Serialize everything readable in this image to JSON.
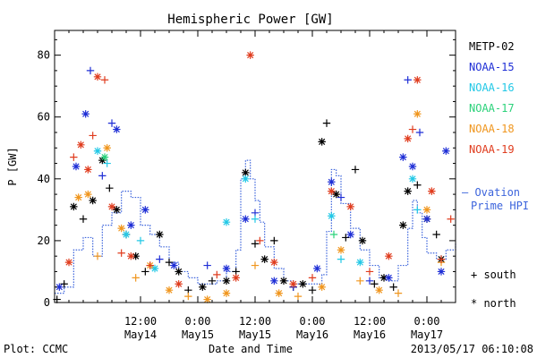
{
  "chart_data": {
    "type": "scatter",
    "title": "Hemispheric Power [GW]",
    "xlabel": "Date and Time",
    "ylabel": "P [GW]",
    "ylim": [
      0,
      88
    ],
    "xlim": [
      "2013-05-13 18:00",
      "2013-05-17 06:00"
    ],
    "y_ticks": [
      0,
      20,
      40,
      60,
      80
    ],
    "x_ticks": [
      {
        "at": "2013-05-14 12:00",
        "line1": "12:00",
        "line2": "May14"
      },
      {
        "at": "2013-05-15 00:00",
        "line1": "0:00",
        "line2": "May15"
      },
      {
        "at": "2013-05-15 12:00",
        "line1": "12:00",
        "line2": "May15"
      },
      {
        "at": "2013-05-16 00:00",
        "line1": "0:00",
        "line2": "May16"
      },
      {
        "at": "2013-05-16 12:00",
        "line1": "12:00",
        "line2": "May16"
      },
      {
        "at": "2013-05-17 00:00",
        "line1": "0:00",
        "line2": "May17"
      }
    ],
    "legend": [
      {
        "name": "METP-02",
        "color": "#000000"
      },
      {
        "name": "NOAA-15",
        "color": "#1f2fd6"
      },
      {
        "name": "NOAA-16",
        "color": "#22c8e6"
      },
      {
        "name": "NOAA-17",
        "color": "#2bd27a"
      },
      {
        "name": "NOAA-18",
        "color": "#f0961e"
      },
      {
        "name": "NOAA-19",
        "color": "#e03c1e"
      }
    ],
    "marker_legend": {
      "south": "+ south",
      "north": "* north"
    },
    "ovation_label": [
      "– Ovation",
      "Prime HPI"
    ],
    "ovation_color": "#3c64dc",
    "ovation": [
      [
        "2013-05-13 18:00",
        3
      ],
      [
        "2013-05-13 20:00",
        5
      ],
      [
        "2013-05-13 22:00",
        17
      ],
      [
        "2013-05-14 00:00",
        21
      ],
      [
        "2013-05-14 02:00",
        15
      ],
      [
        "2013-05-14 04:00",
        25
      ],
      [
        "2013-05-14 06:00",
        29
      ],
      [
        "2013-05-14 08:00",
        36
      ],
      [
        "2013-05-14 10:00",
        34
      ],
      [
        "2013-05-14 12:00",
        25
      ],
      [
        "2013-05-14 14:00",
        22
      ],
      [
        "2013-05-14 16:00",
        18
      ],
      [
        "2013-05-14 18:00",
        13
      ],
      [
        "2013-05-14 20:00",
        10
      ],
      [
        "2013-05-14 22:00",
        8
      ],
      [
        "2013-05-15 00:00",
        6
      ],
      [
        "2013-05-15 02:00",
        6
      ],
      [
        "2013-05-15 04:00",
        7
      ],
      [
        "2013-05-15 06:00",
        10
      ],
      [
        "2013-05-15 08:00",
        17
      ],
      [
        "2013-05-15 09:00",
        40
      ],
      [
        "2013-05-15 10:00",
        46
      ],
      [
        "2013-05-15 11:00",
        40
      ],
      [
        "2013-05-15 12:00",
        33
      ],
      [
        "2013-05-15 13:00",
        26
      ],
      [
        "2013-05-15 14:00",
        18
      ],
      [
        "2013-05-15 16:00",
        11
      ],
      [
        "2013-05-15 18:00",
        7
      ],
      [
        "2013-05-15 20:00",
        6
      ],
      [
        "2013-05-15 22:00",
        6
      ],
      [
        "2013-05-16 00:00",
        6
      ],
      [
        "2013-05-16 02:00",
        9
      ],
      [
        "2013-05-16 03:00",
        23
      ],
      [
        "2013-05-16 04:00",
        43
      ],
      [
        "2013-05-16 05:00",
        41
      ],
      [
        "2013-05-16 06:00",
        32
      ],
      [
        "2013-05-16 08:00",
        24
      ],
      [
        "2013-05-16 10:00",
        17
      ],
      [
        "2013-05-16 12:00",
        12
      ],
      [
        "2013-05-16 14:00",
        8
      ],
      [
        "2013-05-16 16:00",
        7
      ],
      [
        "2013-05-16 18:00",
        12
      ],
      [
        "2013-05-16 20:00",
        24
      ],
      [
        "2013-05-16 21:00",
        33
      ],
      [
        "2013-05-16 22:00",
        29
      ],
      [
        "2013-05-16 23:00",
        21
      ],
      [
        "2013-05-17 00:00",
        16
      ],
      [
        "2013-05-17 02:00",
        14
      ],
      [
        "2013-05-17 04:00",
        17
      ],
      [
        "2013-05-17 06:00",
        19
      ]
    ],
    "series": [
      {
        "name": "METP-02",
        "color": "#000000",
        "points": [
          [
            "2013-05-13 18:30",
            1,
            "+"
          ],
          [
            "2013-05-13 20:00",
            6,
            "+"
          ],
          [
            "2013-05-13 22:00",
            31,
            "*"
          ],
          [
            "2013-05-14 00:00",
            27,
            "+"
          ],
          [
            "2013-05-14 02:00",
            33,
            "*"
          ],
          [
            "2013-05-14 04:00",
            46,
            "*"
          ],
          [
            "2013-05-14 05:30",
            37,
            "+"
          ],
          [
            "2013-05-14 07:00",
            30,
            "*"
          ],
          [
            "2013-05-14 09:00",
            22,
            "+"
          ],
          [
            "2013-05-14 11:00",
            15,
            "*"
          ],
          [
            "2013-05-14 13:00",
            10,
            "+"
          ],
          [
            "2013-05-14 16:00",
            22,
            "*"
          ],
          [
            "2013-05-14 18:00",
            13,
            "+"
          ],
          [
            "2013-05-14 20:00",
            10,
            "*"
          ],
          [
            "2013-05-14 22:00",
            4,
            "+"
          ],
          [
            "2013-05-15 01:00",
            5,
            "*"
          ],
          [
            "2013-05-15 03:00",
            7,
            "+"
          ],
          [
            "2013-05-15 06:00",
            7,
            "*"
          ],
          [
            "2013-05-15 08:00",
            10,
            "+"
          ],
          [
            "2013-05-15 10:00",
            42,
            "*"
          ],
          [
            "2013-05-15 12:00",
            19,
            "+"
          ],
          [
            "2013-05-15 14:00",
            14,
            "*"
          ],
          [
            "2013-05-15 16:00",
            20,
            "+"
          ],
          [
            "2013-05-15 18:00",
            7,
            "*"
          ],
          [
            "2013-05-15 20:00",
            5,
            "+"
          ],
          [
            "2013-05-15 22:00",
            6,
            "*"
          ],
          [
            "2013-05-16 00:00",
            4,
            "+"
          ],
          [
            "2013-05-16 02:00",
            52,
            "*"
          ],
          [
            "2013-05-16 03:00",
            58,
            "+"
          ],
          [
            "2013-05-16 05:00",
            35,
            "*"
          ],
          [
            "2013-05-16 07:00",
            21,
            "+"
          ],
          [
            "2013-05-16 09:00",
            43,
            "+"
          ],
          [
            "2013-05-16 10:30",
            20,
            "*"
          ],
          [
            "2013-05-16 13:00",
            6,
            "+"
          ],
          [
            "2013-05-16 15:00",
            8,
            "*"
          ],
          [
            "2013-05-16 17:00",
            5,
            "+"
          ],
          [
            "2013-05-16 19:00",
            25,
            "*"
          ],
          [
            "2013-05-16 20:00",
            36,
            "*"
          ],
          [
            "2013-05-16 22:00",
            38,
            "+"
          ],
          [
            "2013-05-17 00:00",
            27,
            "*"
          ],
          [
            "2013-05-17 02:00",
            22,
            "+"
          ],
          [
            "2013-05-17 03:00",
            14,
            "*"
          ]
        ]
      },
      {
        "name": "NOAA-15",
        "color": "#1f2fd6",
        "points": [
          [
            "2013-05-13 19:00",
            5,
            "*"
          ],
          [
            "2013-05-13 22:30",
            44,
            "*"
          ],
          [
            "2013-05-14 00:30",
            61,
            "*"
          ],
          [
            "2013-05-14 01:30",
            75,
            "+"
          ],
          [
            "2013-05-14 04:00",
            41,
            "+"
          ],
          [
            "2013-05-14 06:00",
            58,
            "+"
          ],
          [
            "2013-05-14 07:00",
            56,
            "*"
          ],
          [
            "2013-05-14 10:00",
            25,
            "*"
          ],
          [
            "2013-05-14 13:00",
            30,
            "*"
          ],
          [
            "2013-05-14 16:00",
            14,
            "+"
          ],
          [
            "2013-05-14 19:00",
            12,
            "*"
          ],
          [
            "2013-05-15 02:00",
            12,
            "+"
          ],
          [
            "2013-05-15 06:00",
            11,
            "*"
          ],
          [
            "2013-05-15 10:00",
            27,
            "*"
          ],
          [
            "2013-05-15 12:00",
            29,
            "+"
          ],
          [
            "2013-05-15 16:00",
            7,
            "*"
          ],
          [
            "2013-05-15 20:00",
            5,
            "+"
          ],
          [
            "2013-05-16 01:00",
            11,
            "*"
          ],
          [
            "2013-05-16 04:00",
            39,
            "*"
          ],
          [
            "2013-05-16 06:00",
            34,
            "+"
          ],
          [
            "2013-05-16 08:00",
            22,
            "*"
          ],
          [
            "2013-05-16 12:00",
            7,
            "+"
          ],
          [
            "2013-05-16 16:00",
            8,
            "*"
          ],
          [
            "2013-05-16 19:00",
            47,
            "*"
          ],
          [
            "2013-05-16 20:00",
            72,
            "+"
          ],
          [
            "2013-05-16 21:00",
            44,
            "*"
          ],
          [
            "2013-05-16 22:30",
            55,
            "+"
          ],
          [
            "2013-05-17 00:00",
            27,
            "*"
          ],
          [
            "2013-05-17 03:00",
            10,
            "*"
          ],
          [
            "2013-05-17 04:00",
            49,
            "*"
          ]
        ]
      },
      {
        "name": "NOAA-16",
        "color": "#22c8e6",
        "points": [
          [
            "2013-05-14 03:00",
            49,
            "*"
          ],
          [
            "2013-05-14 05:00",
            45,
            "+"
          ],
          [
            "2013-05-14 09:00",
            22,
            "*"
          ],
          [
            "2013-05-14 12:00",
            20,
            "+"
          ],
          [
            "2013-05-14 15:00",
            11,
            "*"
          ],
          [
            "2013-05-15 06:00",
            26,
            "*"
          ],
          [
            "2013-05-15 10:00",
            40,
            "*"
          ],
          [
            "2013-05-15 12:00",
            27,
            "+"
          ],
          [
            "2013-05-16 04:00",
            28,
            "*"
          ],
          [
            "2013-05-16 06:00",
            14,
            "+"
          ],
          [
            "2013-05-16 10:00",
            13,
            "*"
          ],
          [
            "2013-05-16 21:00",
            40,
            "*"
          ],
          [
            "2013-05-16 22:00",
            30,
            "+"
          ]
        ]
      },
      {
        "name": "NOAA-17",
        "color": "#2bd27a",
        "points": [
          [
            "2013-05-14 04:30",
            47,
            "*"
          ],
          [
            "2013-05-16 04:30",
            22,
            "+"
          ]
        ]
      },
      {
        "name": "NOAA-18",
        "color": "#f0961e",
        "points": [
          [
            "2013-05-13 23:00",
            34,
            "*"
          ],
          [
            "2013-05-14 01:00",
            35,
            "*"
          ],
          [
            "2013-05-14 03:00",
            15,
            "+"
          ],
          [
            "2013-05-14 05:00",
            50,
            "*"
          ],
          [
            "2013-05-14 08:00",
            24,
            "*"
          ],
          [
            "2013-05-14 11:00",
            8,
            "+"
          ],
          [
            "2013-05-14 14:00",
            12,
            "*"
          ],
          [
            "2013-05-14 18:00",
            4,
            "*"
          ],
          [
            "2013-05-14 22:00",
            2,
            "+"
          ],
          [
            "2013-05-15 02:00",
            1,
            "*"
          ],
          [
            "2013-05-15 06:00",
            3,
            "*"
          ],
          [
            "2013-05-15 12:00",
            12,
            "+"
          ],
          [
            "2013-05-15 17:00",
            3,
            "*"
          ],
          [
            "2013-05-15 21:00",
            2,
            "+"
          ],
          [
            "2013-05-16 02:00",
            5,
            "*"
          ],
          [
            "2013-05-16 06:00",
            17,
            "*"
          ],
          [
            "2013-05-16 10:00",
            7,
            "+"
          ],
          [
            "2013-05-16 14:00",
            4,
            "*"
          ],
          [
            "2013-05-16 18:00",
            3,
            "+"
          ],
          [
            "2013-05-16 22:00",
            61,
            "*"
          ],
          [
            "2013-05-17 00:00",
            30,
            "*"
          ],
          [
            "2013-05-17 03:00",
            13,
            "+"
          ]
        ]
      },
      {
        "name": "NOAA-19",
        "color": "#e03c1e",
        "points": [
          [
            "2013-05-13 21:00",
            13,
            "*"
          ],
          [
            "2013-05-13 22:00",
            47,
            "+"
          ],
          [
            "2013-05-13 23:30",
            51,
            "*"
          ],
          [
            "2013-05-14 01:00",
            43,
            "*"
          ],
          [
            "2013-05-14 02:00",
            54,
            "+"
          ],
          [
            "2013-05-14 03:00",
            73,
            "*"
          ],
          [
            "2013-05-14 04:30",
            72,
            "+"
          ],
          [
            "2013-05-14 06:00",
            31,
            "*"
          ],
          [
            "2013-05-14 08:00",
            16,
            "+"
          ],
          [
            "2013-05-14 10:00",
            15,
            "*"
          ],
          [
            "2013-05-14 14:00",
            12,
            "+"
          ],
          [
            "2013-05-14 20:00",
            6,
            "*"
          ],
          [
            "2013-05-15 04:00",
            9,
            "+"
          ],
          [
            "2013-05-15 08:00",
            8,
            "*"
          ],
          [
            "2013-05-15 11:00",
            80,
            "*"
          ],
          [
            "2013-05-15 13:00",
            20,
            "+"
          ],
          [
            "2013-05-15 16:00",
            13,
            "*"
          ],
          [
            "2013-05-15 20:00",
            6,
            "*"
          ],
          [
            "2013-05-16 00:00",
            8,
            "+"
          ],
          [
            "2013-05-16 04:00",
            36,
            "*"
          ],
          [
            "2013-05-16 08:00",
            31,
            "*"
          ],
          [
            "2013-05-16 12:00",
            10,
            "+"
          ],
          [
            "2013-05-16 16:00",
            15,
            "*"
          ],
          [
            "2013-05-16 20:00",
            53,
            "*"
          ],
          [
            "2013-05-16 21:00",
            56,
            "+"
          ],
          [
            "2013-05-16 22:00",
            72,
            "*"
          ],
          [
            "2013-05-17 01:00",
            36,
            "*"
          ],
          [
            "2013-05-17 03:00",
            14,
            "+"
          ],
          [
            "2013-05-17 05:00",
            27,
            "+"
          ]
        ]
      }
    ]
  },
  "footer": {
    "plot_credit": "Plot: CCMC",
    "timestamp": "2013/05/17 06:10:08"
  }
}
